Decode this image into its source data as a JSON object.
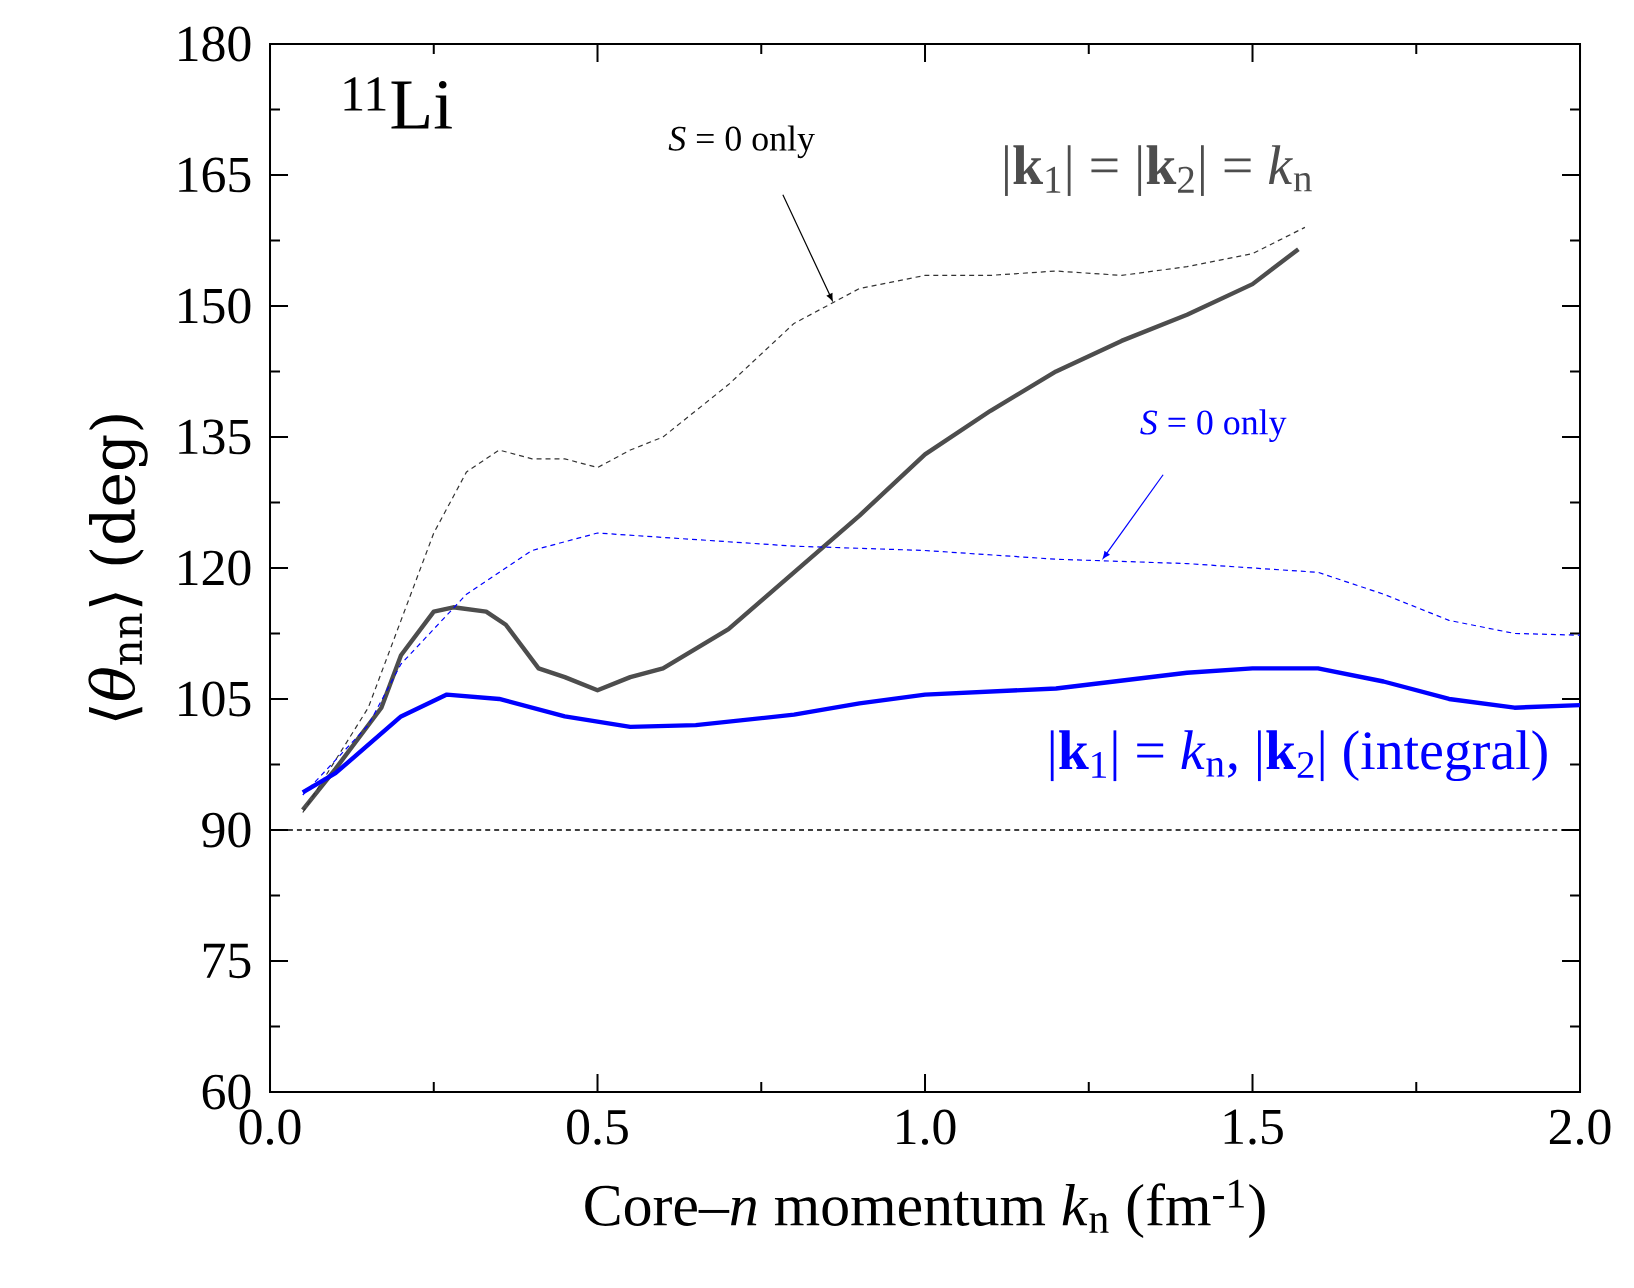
{
  "chart_data": {
    "type": "line",
    "xlabel": "Core–*n* momentum  *k*$_{n}$ (fm$^{-1}$)",
    "ylabel": "⟨*θ*$_{nn}$⟩ (deg)",
    "xlim": [
      0,
      2
    ],
    "ylim": [
      60,
      180
    ],
    "xticks": [
      {
        "value": 0,
        "label": "0.0"
      },
      {
        "value": 0.5,
        "label": "0.5"
      },
      {
        "value": 1,
        "label": "1.0"
      },
      {
        "value": 1.5,
        "label": "1.5"
      },
      {
        "value": 2,
        "label": "2.0"
      }
    ],
    "yticks": [
      60,
      75,
      90,
      105,
      120,
      135,
      150,
      165,
      180
    ],
    "grid": false,
    "series": [
      {
        "name": "|**k**$_{1}$| = |**k**$_{2}$| = *k*$_{n}$",
        "color": "#4d4d4d",
        "line_style": "solid",
        "x": [
          0.05,
          0.1,
          0.17,
          0.2,
          0.25,
          0.28,
          0.33,
          0.36,
          0.41,
          0.45,
          0.5,
          0.55,
          0.6,
          0.7,
          0.8,
          0.9,
          1.0,
          1.1,
          1.2,
          1.3,
          1.4,
          1.5,
          1.57
        ],
        "values": [
          92.3,
          97,
          104,
          110,
          115,
          115.5,
          115,
          113.5,
          108.5,
          107.5,
          106,
          107.5,
          108.5,
          113,
          119.5,
          126,
          133,
          138,
          142.5,
          146,
          149,
          152.5,
          156.5
        ]
      },
      {
        "color": "#333333",
        "line_style": "dashed",
        "x": [
          0.05,
          0.15,
          0.2,
          0.25,
          0.3,
          0.35,
          0.4,
          0.45,
          0.5,
          0.55,
          0.6,
          0.7,
          0.8,
          0.9,
          1.0,
          1.1,
          1.2,
          1.3,
          1.4,
          1.5,
          1.58
        ],
        "values": [
          92,
          104,
          114,
          124,
          131,
          133.5,
          132.5,
          132.5,
          131.5,
          133.5,
          135,
          141,
          148,
          152,
          153.5,
          153.5,
          154,
          153.5,
          154.5,
          156,
          159
        ]
      },
      {
        "name": "|**k**$_{1}$| = *k*$_{n}$,  |**k**$_{2}$| (integral)",
        "color": "#0000ff",
        "line_style": "solid",
        "x": [
          0.05,
          0.1,
          0.2,
          0.27,
          0.35,
          0.45,
          0.55,
          0.65,
          0.8,
          0.9,
          1.0,
          1.2,
          1.4,
          1.5,
          1.6,
          1.7,
          1.8,
          1.9,
          2.0
        ],
        "values": [
          94.3,
          96.5,
          103,
          105.5,
          105,
          103,
          101.8,
          102,
          103.2,
          104.5,
          105.5,
          106.2,
          108,
          108.5,
          108.5,
          107,
          105,
          104,
          104.3
        ]
      },
      {
        "color": "#0000ff",
        "line_style": "dashed",
        "x": [
          0.05,
          0.15,
          0.2,
          0.3,
          0.4,
          0.5,
          0.6,
          0.8,
          1.0,
          1.2,
          1.4,
          1.6,
          1.7,
          1.8,
          1.9,
          2.0
        ],
        "values": [
          94,
          102,
          109,
          117,
          122,
          124,
          123.5,
          122.5,
          122,
          121,
          120.5,
          119.5,
          117,
          114,
          112.5,
          112.3
        ]
      }
    ],
    "ref_lines": [
      {
        "axis": "y",
        "value": 90,
        "color": "#000000",
        "line_style": "dashed"
      }
    ],
    "annotations": [
      "$^{11}$Li",
      {
        "text": "*S* = 0 only",
        "x": 0.86,
        "y": 150.4
      },
      {
        "text": "*S* = 0 only",
        "x": 1.27,
        "y": 120.9
      }
    ]
  }
}
